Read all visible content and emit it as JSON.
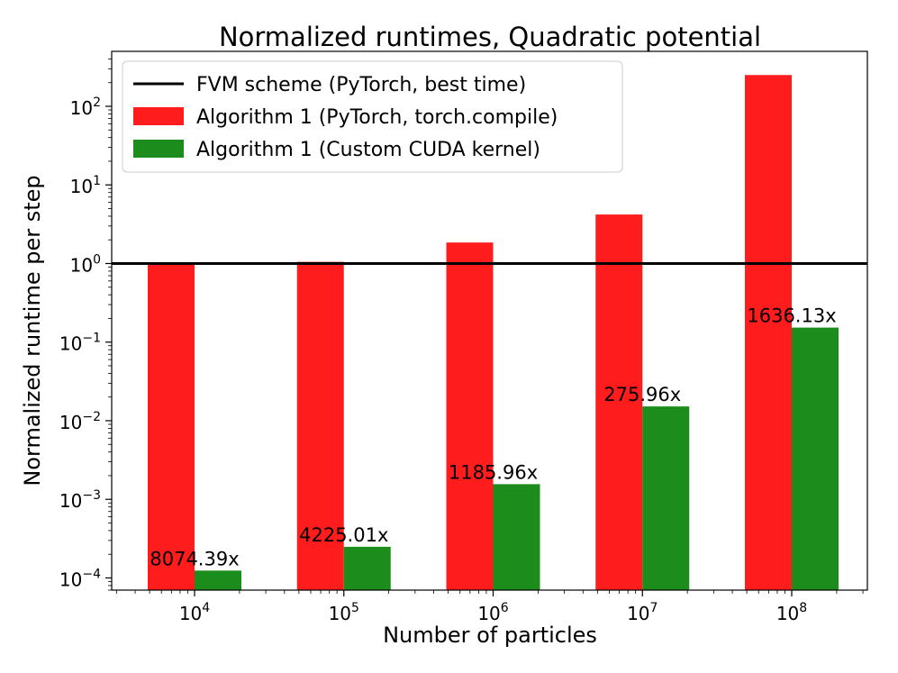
{
  "chart_data": {
    "type": "bar",
    "title": "Normalized runtimes, Quadratic potential",
    "xlabel": "Number of particles",
    "ylabel": "Normalized runtime per step",
    "yscale": "log",
    "ylim": [
      7e-05,
      500
    ],
    "categories": [
      {
        "base": "10",
        "exp": "4"
      },
      {
        "base": "10",
        "exp": "5"
      },
      {
        "base": "10",
        "exp": "6"
      },
      {
        "base": "10",
        "exp": "7"
      },
      {
        "base": "10",
        "exp": "8"
      }
    ],
    "yticks": [
      {
        "value": 0.0001,
        "base": "10",
        "exp": "−4"
      },
      {
        "value": 0.001,
        "base": "10",
        "exp": "−3"
      },
      {
        "value": 0.01,
        "base": "10",
        "exp": "−2"
      },
      {
        "value": 0.1,
        "base": "10",
        "exp": "−1"
      },
      {
        "value": 1,
        "base": "10",
        "exp": "0"
      },
      {
        "value": 10,
        "base": "10",
        "exp": "1"
      },
      {
        "value": 100,
        "base": "10",
        "exp": "2"
      }
    ],
    "reference_line": {
      "name": "FVM scheme (PyTorch, best time)",
      "value": 1,
      "color": "#000000"
    },
    "series": [
      {
        "name": "Algorithm 1 (PyTorch, torch.compile)",
        "color": "#ff1c1c",
        "values": [
          1.0,
          1.05,
          1.85,
          4.2,
          250
        ]
      },
      {
        "name": "Algorithm 1 (Custom CUDA kernel)",
        "color": "#1c8c1c",
        "values": [
          0.000124,
          0.000249,
          0.00156,
          0.0152,
          0.153
        ]
      }
    ],
    "bar_labels": [
      "8074.39x",
      "4225.01x",
      "1185.96x",
      "275.96x",
      "1636.13x"
    ],
    "legend_position": "top-left",
    "grid": false
  }
}
